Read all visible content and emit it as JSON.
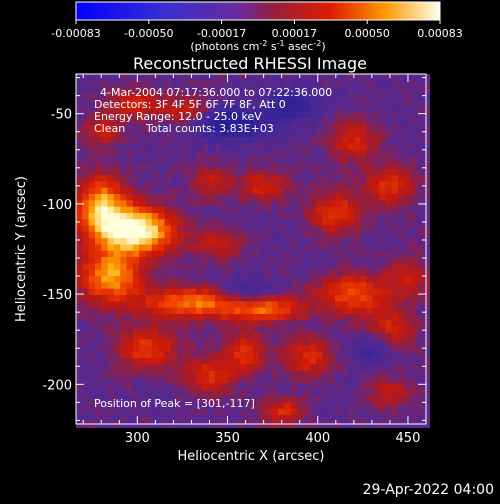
{
  "chart_data": {
    "type": "heatmap",
    "title": "Reconstructed RHESSI Image",
    "xlabel": "Heliocentric X (arcsec)",
    "ylabel": "Heliocentric Y (arcsec)",
    "xlim": [
      266,
      460
    ],
    "ylim": [
      -222,
      -28
    ],
    "x_ticks": [
      300,
      350,
      400,
      450
    ],
    "y_ticks": [
      -50,
      -100,
      -150,
      -200
    ],
    "colorbar": {
      "min": -0.00083,
      "max": 0.00083,
      "ticks": [
        "-0.00083",
        "-0.00050",
        "-0.00017",
        "0.00017",
        "0.00050",
        "0.00083"
      ],
      "units_prefix": "(photons cm",
      "units_exp1": "-2",
      "units_mid": " s",
      "units_exp2": "-1",
      "units_mid2": " asec",
      "units_exp3": "-2",
      "units_suffix": ")"
    },
    "annotations": {
      "time_range": "4-Mar-2004 07:17:36.000 to 07:22:36.000",
      "detectors": "Detectors: 3F 4F 5F 6F 7F 8F, Att 0",
      "energy": "Energy Range: 12.0 - 25.0 keV",
      "method": "Clean",
      "counts": "Total counts: 3.83E+03",
      "peak": "Position of Peak = [301,-117]"
    },
    "peak": [
      301,
      -117
    ],
    "blobs": [
      {
        "x": 300,
        "y": -115,
        "amp": 1.0,
        "sx": 14,
        "sy": 9
      },
      {
        "x": 280,
        "y": -102,
        "amp": 0.75,
        "sx": 10,
        "sy": 12
      },
      {
        "x": 285,
        "y": -140,
        "amp": 0.7,
        "sx": 12,
        "sy": 10
      },
      {
        "x": 330,
        "y": -155,
        "amp": 0.6,
        "sx": 20,
        "sy": 6
      },
      {
        "x": 370,
        "y": -158,
        "amp": 0.55,
        "sx": 15,
        "sy": 5
      },
      {
        "x": 345,
        "y": -122,
        "amp": 0.3,
        "sx": 10,
        "sy": 6
      },
      {
        "x": 305,
        "y": -180,
        "amp": 0.45,
        "sx": 12,
        "sy": 8
      },
      {
        "x": 340,
        "y": -195,
        "amp": 0.4,
        "sx": 10,
        "sy": 7
      },
      {
        "x": 360,
        "y": -182,
        "amp": 0.42,
        "sx": 8,
        "sy": 8
      },
      {
        "x": 395,
        "y": -185,
        "amp": 0.38,
        "sx": 10,
        "sy": 8
      },
      {
        "x": 420,
        "y": -150,
        "amp": 0.5,
        "sx": 14,
        "sy": 8
      },
      {
        "x": 440,
        "y": -170,
        "amp": 0.35,
        "sx": 10,
        "sy": 8
      },
      {
        "x": 450,
        "y": -140,
        "amp": 0.3,
        "sx": 8,
        "sy": 8
      },
      {
        "x": 410,
        "y": -105,
        "amp": 0.45,
        "sx": 10,
        "sy": 8
      },
      {
        "x": 440,
        "y": -90,
        "amp": 0.4,
        "sx": 10,
        "sy": 8
      },
      {
        "x": 420,
        "y": -65,
        "amp": 0.35,
        "sx": 10,
        "sy": 8
      },
      {
        "x": 370,
        "y": -90,
        "amp": 0.35,
        "sx": 10,
        "sy": 6
      },
      {
        "x": 340,
        "y": -88,
        "amp": 0.3,
        "sx": 8,
        "sy": 6
      },
      {
        "x": 330,
        "y": -50,
        "amp": 0.38,
        "sx": 10,
        "sy": 6
      },
      {
        "x": 300,
        "y": -45,
        "amp": 0.35,
        "sx": 12,
        "sy": 6
      },
      {
        "x": 380,
        "y": -215,
        "amp": 0.4,
        "sx": 8,
        "sy": 5
      },
      {
        "x": 440,
        "y": -205,
        "amp": 0.3,
        "sx": 8,
        "sy": 6
      },
      {
        "x": 280,
        "y": -60,
        "amp": 0.3,
        "sx": 8,
        "sy": 6
      }
    ],
    "negatives": [
      {
        "x": 350,
        "y": -55,
        "amp": 0.55,
        "sx": 16,
        "sy": 6
      },
      {
        "x": 385,
        "y": -45,
        "amp": 0.35,
        "sx": 10,
        "sy": 6
      },
      {
        "x": 360,
        "y": -150,
        "amp": 0.3,
        "sx": 10,
        "sy": 5
      },
      {
        "x": 430,
        "y": -180,
        "amp": 0.3,
        "sx": 8,
        "sy": 6
      }
    ]
  },
  "footer": {
    "date": "29-Apr-2022 04:00"
  }
}
